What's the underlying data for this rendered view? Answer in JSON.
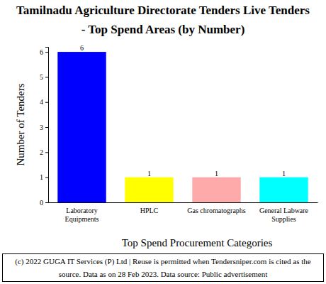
{
  "chart_data": {
    "type": "bar",
    "title": [
      "Tamilnadu Agriculture Directorate Tenders Live Tenders",
      "- Top Spend Areas (by Number)"
    ],
    "categories": [
      "Laboratory Equipments",
      "HPLC",
      "Gas chromatographs",
      "General Labware Supplies"
    ],
    "values": [
      6,
      1,
      1,
      1
    ],
    "colors": [
      "#0000ff",
      "#ffff00",
      "#ffaaaa",
      "#00ffff"
    ],
    "ylim": [
      0,
      6.2
    ],
    "yticks": [
      0,
      1,
      2,
      3,
      4,
      5,
      6
    ],
    "grid": false,
    "data_labels": true,
    "x_label": "Top Spend Procurement Categories",
    "y_label": "Number of Tenders",
    "annotations": [
      "(c) 2022 GUGA IT Services (P) Ltd | Reuse is permitted when Tendersniper.com is cited as the",
      "source. Data as on 28 Feb 2023. Data source: Public advertisement"
    ]
  }
}
